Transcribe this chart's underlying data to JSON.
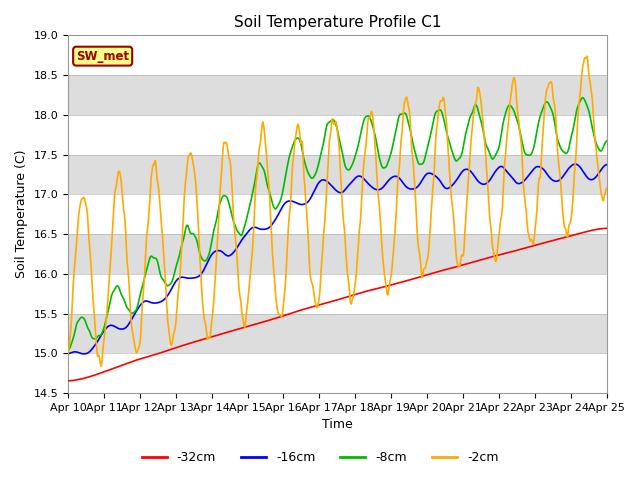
{
  "title": "Soil Temperature Profile C1",
  "xlabel": "Time",
  "ylabel": "Soil Temperature (C)",
  "ylim": [
    14.5,
    19.0
  ],
  "yticks": [
    14.5,
    15.0,
    15.5,
    16.0,
    16.5,
    17.0,
    17.5,
    18.0,
    18.5,
    19.0
  ],
  "xtick_labels": [
    "Apr 10",
    "Apr 11",
    "Apr 12",
    "Apr 13",
    "Apr 14",
    "Apr 15",
    "Apr 16",
    "Apr 17",
    "Apr 18",
    "Apr 19",
    "Apr 20",
    "Apr 21",
    "Apr 22",
    "Apr 23",
    "Apr 24",
    "Apr 25"
  ],
  "line_colors": {
    "-32cm": "#ff0000",
    "-16cm": "#0000ff",
    "-8cm": "#00bb00",
    "-2cm": "#ffaa00"
  },
  "legend_labels": [
    "-32cm",
    "-16cm",
    "-8cm",
    "-2cm"
  ],
  "sw_met_label": "SW_met",
  "sw_met_bg": "#ffff88",
  "sw_met_border": "#990000",
  "plot_bg": "#dddddd",
  "band_color": "#ffffff",
  "title_fontsize": 11,
  "axis_label_fontsize": 9,
  "tick_fontsize": 8,
  "linewidth": 1.2
}
